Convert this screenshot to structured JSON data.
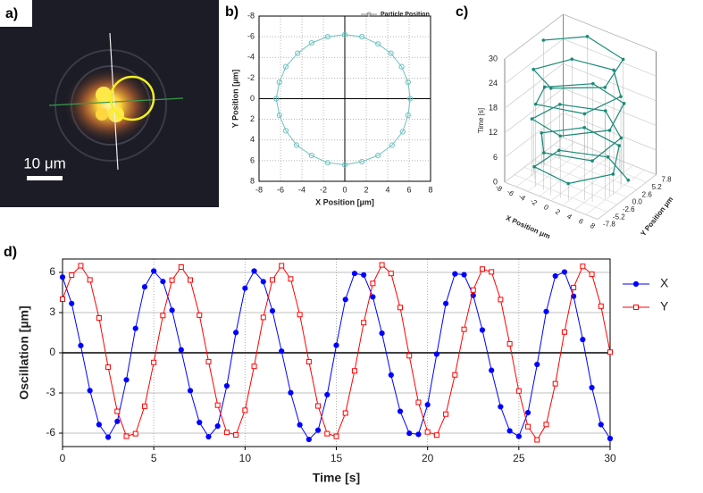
{
  "image_panel": {
    "label": "a)",
    "scale_bar": "10 μm"
  },
  "chart_data": [
    {
      "type": "scatter",
      "label": "b)",
      "xlabel": "X Position [µm]",
      "ylabel": "Y Position [µm]",
      "xlim": [
        -8,
        8
      ],
      "ylim": [
        8,
        -8
      ],
      "xticks": [
        -8,
        -6,
        -4,
        -2,
        0,
        2,
        4,
        6,
        8
      ],
      "yticks": [
        -8,
        -6,
        -4,
        -2,
        0,
        2,
        4,
        6,
        8
      ],
      "grid": true,
      "legend": "upper right",
      "series": [
        {
          "name": "Particle Position",
          "color": "#6fc2bf",
          "x": [
            6.1,
            5.9,
            5.4,
            4.4,
            3.1,
            1.6,
            0,
            -1.6,
            -3.1,
            -4.5,
            -5.5,
            -6.1,
            -6.4,
            -6.1,
            -5.5,
            -4.4,
            -3.1,
            -1.6,
            0,
            1.6,
            3.1,
            4.3,
            5.3,
            5.9
          ],
          "y": [
            0,
            1.6,
            3.2,
            4.5,
            5.5,
            6.1,
            6.4,
            6.2,
            5.5,
            4.5,
            3.1,
            1.6,
            0,
            -1.6,
            -3.1,
            -4.4,
            -5.4,
            -6.0,
            -6.2,
            -6.0,
            -5.3,
            -4.4,
            -3.1,
            -1.6
          ]
        }
      ]
    },
    {
      "type": "scatter3d",
      "label": "c)",
      "xlabel": "X Position μm",
      "ylabel": "Y Position μm",
      "zlabel": "Time [s]",
      "xlim": [
        -8,
        8
      ],
      "ylim": [
        -7.8,
        7.8
      ],
      "zlim": [
        0,
        30
      ],
      "xticks": [
        -8,
        -6,
        -4,
        -2,
        0,
        2,
        4,
        6,
        8
      ],
      "yticks": [
        -7.8,
        -5.2,
        -2.6,
        {
          "value": 0,
          "label": "0.0"
        },
        2.6,
        5.2,
        7.8
      ],
      "zticks": [
        0,
        6,
        12,
        18,
        24,
        30
      ],
      "color": "#1a8a78",
      "time": [
        0,
        1,
        2,
        3,
        4,
        5,
        6,
        7,
        8,
        9,
        10,
        11,
        12,
        13,
        14,
        15,
        16,
        17,
        18,
        19,
        20,
        21,
        22,
        23,
        24,
        25,
        26,
        27,
        28,
        29,
        30
      ],
      "x": [
        5.65,
        0.54,
        -5.36,
        -5.12,
        1.82,
        6.1,
        3.18,
        -2.83,
        -6.27,
        -2.47,
        4.82,
        5.31,
        0.12,
        -5.38,
        -5.78,
        0.56,
        5.92,
        4.17,
        -1.66,
        -6.01,
        -3.88,
        3.68,
        5.83,
        1.7,
        -4.03,
        -6.24,
        -0.87,
        5.73,
        4.22,
        -2.6,
        -6.4
      ],
      "y": [
        4.0,
        6.5,
        2.6,
        -4.37,
        -6.04,
        -0.72,
        5.42,
        5.43,
        -0.66,
        -5.94,
        -4.29,
        2.64,
        6.5,
        2.85,
        -3.97,
        -6.24,
        -1.35,
        5.18,
        5.92,
        -0.22,
        -5.91,
        -4.58,
        1.75,
        6.25,
        3.97,
        -2.85,
        -6.5,
        -2.31,
        4.87,
        5.86,
        0.05
      ]
    },
    {
      "type": "line",
      "label": "d)",
      "xlabel": "Time [s]",
      "ylabel": "Oscillation [µm]",
      "xlim": [
        0,
        30
      ],
      "ylim": [
        -7,
        7
      ],
      "xticks": [
        0,
        5,
        10,
        15,
        20,
        25,
        30
      ],
      "yticks": [
        -6,
        -3,
        0,
        3,
        6
      ],
      "grid": true,
      "legend": "right",
      "x": [
        0,
        0.5,
        1,
        1.5,
        2,
        2.5,
        3,
        3.5,
        4,
        4.5,
        5,
        5.5,
        6,
        6.5,
        7,
        7.5,
        8,
        8.5,
        9,
        9.5,
        10,
        10.5,
        11,
        11.5,
        12,
        12.5,
        13,
        13.5,
        14,
        14.5,
        15,
        15.5,
        16,
        16.5,
        17,
        17.5,
        18,
        18.5,
        19,
        19.5,
        20,
        20.5,
        21,
        21.5,
        22,
        22.5,
        23,
        23.5,
        24,
        24.5,
        25,
        25.5,
        26,
        26.5,
        27,
        27.5,
        28,
        28.5,
        29,
        29.5,
        30
      ],
      "series": [
        {
          "name": "X",
          "color": "#0000ff",
          "marker": "circle",
          "values": [
            5.65,
            3.68,
            0.54,
            -2.82,
            -5.36,
            -6.3,
            -5.12,
            -2.02,
            1.82,
            4.92,
            6.1,
            5.32,
            3.18,
            0.22,
            -2.83,
            -5.2,
            -6.27,
            -5.47,
            -2.47,
            1.51,
            4.82,
            6.1,
            5.31,
            3.13,
            0.12,
            -2.98,
            -5.38,
            -6.47,
            -5.78,
            -3.13,
            0.56,
            3.98,
            5.92,
            5.81,
            4.17,
            1.46,
            -1.66,
            -4.37,
            -6.01,
            -6.09,
            -3.88,
            -0.1,
            3.68,
            5.89,
            5.83,
            4.28,
            1.7,
            -1.31,
            -4.03,
            -5.83,
            -6.24,
            -4.47,
            -0.87,
            3.08,
            5.73,
            6.03,
            4.22,
            0.99,
            -2.6,
            -5.36,
            -6.4
          ]
        },
        {
          "name": "Y",
          "color": "#ff0000",
          "marker": "square",
          "values": [
            4.0,
            5.8,
            6.5,
            5.44,
            2.6,
            -1.07,
            -4.37,
            -6.23,
            -6.04,
            -3.99,
            -0.72,
            2.78,
            5.42,
            6.4,
            5.43,
            2.81,
            -0.66,
            -3.91,
            -5.94,
            -6.13,
            -4.29,
            -1.01,
            2.64,
            5.44,
            6.5,
            5.51,
            2.85,
            -0.67,
            -3.97,
            -6.04,
            -6.24,
            -4.5,
            -1.35,
            2.25,
            5.18,
            6.56,
            5.92,
            3.38,
            -0.22,
            -3.7,
            -5.91,
            -6.15,
            -4.58,
            -1.65,
            1.75,
            4.68,
            6.25,
            6.04,
            3.97,
            0.67,
            -2.85,
            -5.51,
            -6.5,
            -5.35,
            -2.31,
            1.55,
            4.87,
            6.45,
            5.86,
            3.48,
            0.05
          ]
        }
      ]
    }
  ]
}
